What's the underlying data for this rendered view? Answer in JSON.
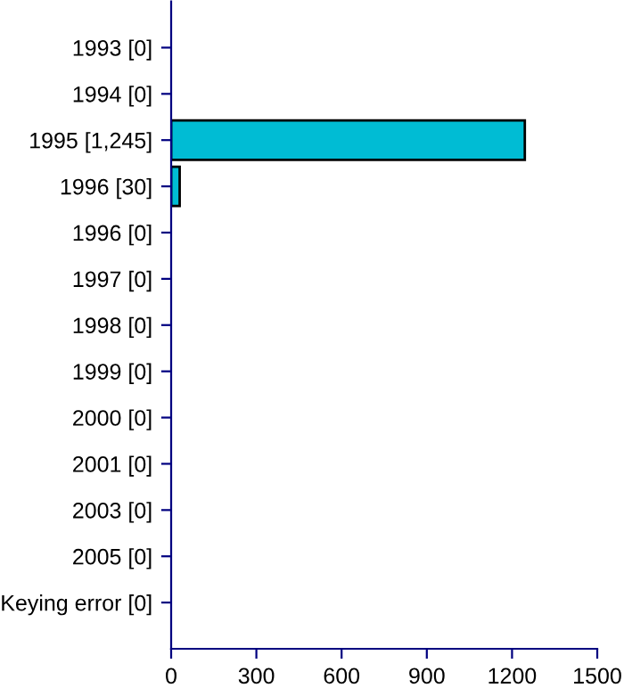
{
  "chart_data": {
    "type": "bar",
    "orientation": "horizontal",
    "categories": [
      "1993 [0]",
      "1994 [0]",
      "1995 [1,245]",
      "1996 [30]",
      "1996 [0]",
      "1997 [0]",
      "1998 [0]",
      "1999 [0]",
      "2000 [0]",
      "2001 [0]",
      "2003 [0]",
      "2005 [0]",
      "Keying error [0]"
    ],
    "values": [
      0,
      0,
      1245,
      30,
      0,
      0,
      0,
      0,
      0,
      0,
      0,
      0,
      0
    ],
    "color": "#00bcd4",
    "xlim": [
      0,
      1500
    ],
    "xticks": [
      0,
      300,
      600,
      900,
      1200,
      1500
    ],
    "grid": false,
    "legend": false
  }
}
